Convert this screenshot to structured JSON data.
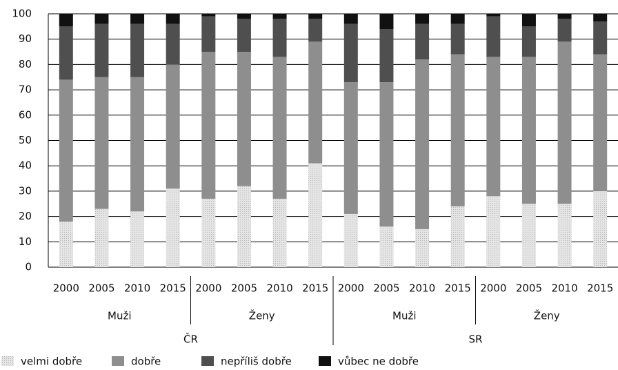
{
  "chart_data": {
    "type": "stacked_bar",
    "categories": [
      "2000",
      "2005",
      "2010",
      "2015",
      "2000",
      "2005",
      "2010",
      "2015",
      "2000",
      "2005",
      "2010",
      "2015",
      "2000",
      "2005",
      "2010",
      "2015"
    ],
    "subgroups": [
      "Muži",
      "Ženy",
      "Muži",
      "Ženy"
    ],
    "groups": [
      "ČR",
      "SR"
    ],
    "series": [
      {
        "name": "velmi dobře",
        "color": "#d6d6d6",
        "values": [
          18,
          23,
          22,
          31,
          27,
          32,
          27,
          41,
          21,
          16,
          15,
          24,
          28,
          25,
          25,
          30
        ]
      },
      {
        "name": "dobře",
        "color": "#8e8e8e",
        "values": [
          56,
          52,
          53,
          49,
          58,
          53,
          56,
          48,
          52,
          57,
          67,
          60,
          55,
          58,
          64,
          54
        ]
      },
      {
        "name": "nepříliš dobře",
        "color": "#4f4f4f",
        "values": [
          21,
          21,
          21,
          16,
          14,
          13,
          15,
          9,
          23,
          21,
          14,
          12,
          16,
          12,
          9,
          13
        ]
      },
      {
        "name": "vůbec ne dobře",
        "color": "#111111",
        "values": [
          5,
          4,
          4,
          4,
          1,
          2,
          2,
          2,
          4,
          6,
          4,
          4,
          1,
          5,
          2,
          3
        ]
      }
    ],
    "ylim": [
      0,
      100
    ],
    "yticks": [
      0,
      10,
      20,
      30,
      40,
      50,
      60,
      70,
      80,
      90,
      100
    ],
    "grid": true,
    "legend": "bottom-left"
  }
}
